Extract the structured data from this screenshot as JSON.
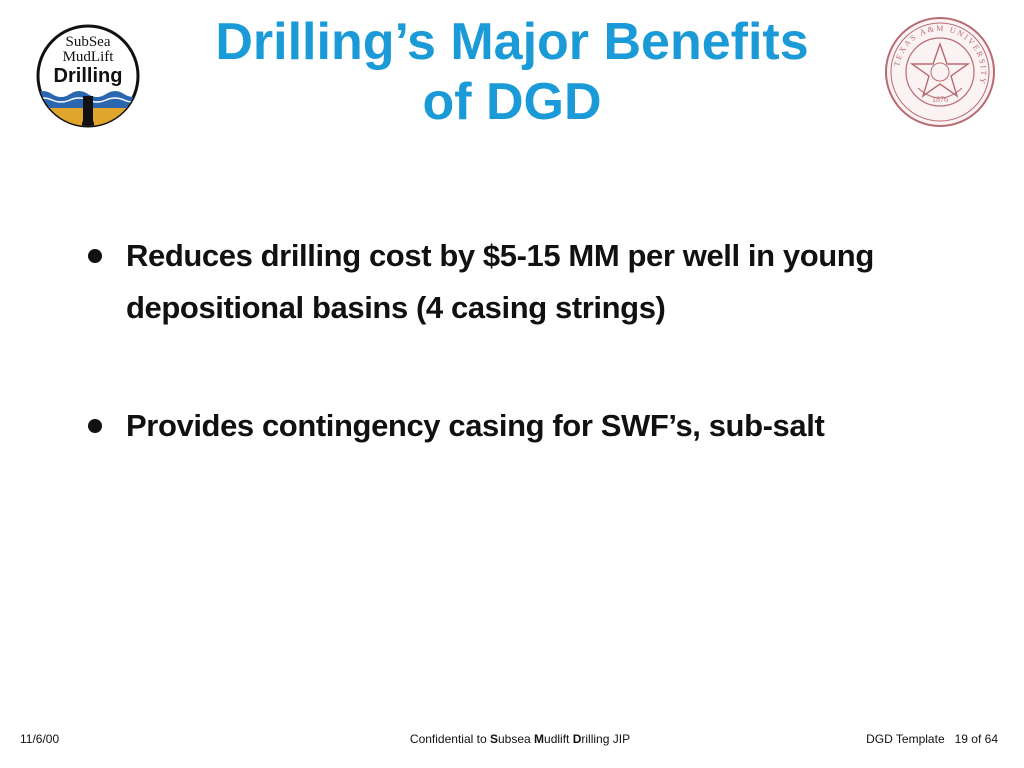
{
  "logos": {
    "left": {
      "line1": "SubSea",
      "line2": "MudLift",
      "line3": "Drilling"
    },
    "right": {
      "ring_text": "TEXAS A&M UNIVERSITY",
      "year": "1876"
    }
  },
  "colors": {
    "title": "#1a9ad6",
    "body_text": "#111111",
    "seal": "#b86b72",
    "logo_blue": "#2b67b0",
    "logo_gold": "#e0a52c"
  },
  "slide": {
    "title_line1": "Drilling’s Major Benefits",
    "title_line2": "of DGD",
    "bullets": [
      "Reduces drilling cost by $5-15 MM per well in young depositional basins (4 casing strings)",
      "Provides contingency casing for SWF’s, sub-salt"
    ]
  },
  "footer": {
    "date": "11/6/00",
    "conf_prefix": "Confidential to ",
    "conf_s": "S",
    "conf_ubsea": "ubsea ",
    "conf_m": "M",
    "conf_udlift": "udlift ",
    "conf_d": "D",
    "conf_rilling": "rilling JIP",
    "template": "DGD Template",
    "page": "19 of 64"
  }
}
